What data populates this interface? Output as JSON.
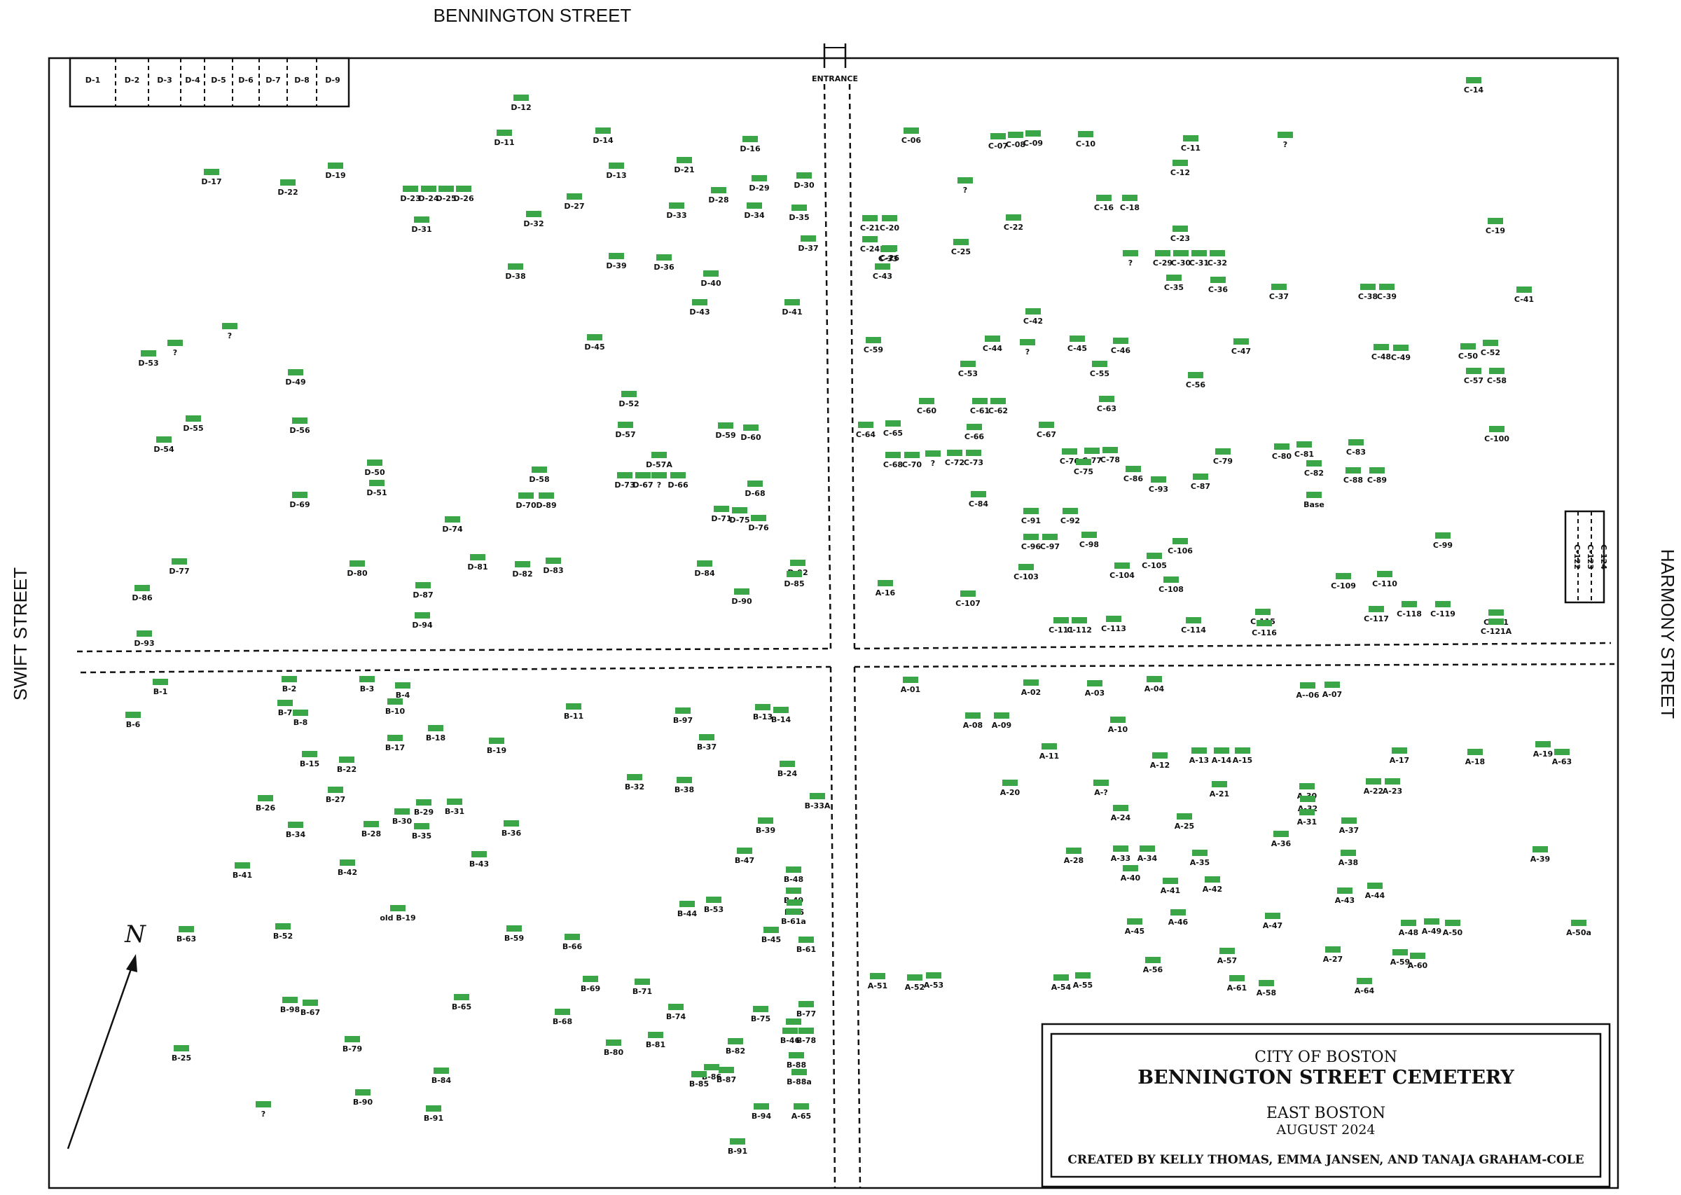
{
  "streets": {
    "north": "BENNINGTON STREET",
    "west": "SWIFT STREET",
    "east": "HARMONY STREET"
  },
  "entrance": "ENTRANCE",
  "compass": "N",
  "title_block": {
    "line1": "CITY OF BOSTON",
    "line2": "BENNINGTON STREET CEMETERY",
    "line3": "EAST BOSTON",
    "line4": "AUGUST 2024",
    "line5": "CREATED BY KELLY THOMAS, EMMA JANSEN, AND TANAJA GRAHAM-COLE"
  },
  "d_row": [
    "D-1",
    "D-2",
    "D-3",
    "D-4",
    "D-5",
    "D-6",
    "D-7",
    "D-8",
    "D-9"
  ],
  "c_box": [
    "C-122",
    "C-123",
    "C-124"
  ],
  "colors": {
    "marker": "#3aa648",
    "ink": "#111111",
    "background": "#ffffff"
  },
  "markers": {
    "D": [
      "D-12",
      "D-11",
      "D-14",
      "D-16",
      "D-21",
      "D-13",
      "D-30",
      "D-29",
      "D-28",
      "D-17",
      "D-22",
      "D-19",
      "D-23",
      "D-24",
      "D-25",
      "D-26",
      "D-27",
      "D-32",
      "D-33",
      "D-34",
      "D-35",
      "D-31",
      "D-37",
      "D-39",
      "D-36",
      "D-38",
      "D-40",
      "D-43",
      "D-41",
      "D-45",
      "?",
      "?",
      "D-53",
      "D-49",
      "D-52",
      "D-55",
      "D-56",
      "D-54",
      "D-57",
      "D-59",
      "D-60",
      "D-57A",
      "D-50",
      "D-58",
      "D-51",
      "D-73",
      "D-67",
      "?",
      "D-66",
      "D-68",
      "D-69",
      "D-70",
      "D-89",
      "D-71",
      "D-75",
      "D-76",
      "D-74",
      "D-92",
      "D-81",
      "D-77",
      "D-80",
      "D-82",
      "D-83",
      "D-84",
      "D-85",
      "D-87",
      "D-86",
      "D-90",
      "D-94",
      "D-93"
    ],
    "C": [
      "C-14",
      "C-06",
      "C-07",
      "C-08",
      "C-09",
      "C-10",
      "C-11",
      "?",
      "C-12",
      "?",
      "C-16",
      "C-18",
      "C-21",
      "C-20",
      "C-22",
      "C-23",
      "C-19",
      "C-24",
      "C-26",
      "C-25",
      "C-33",
      "?",
      "C-29",
      "C-30",
      "C-31",
      "C-32",
      "C-43",
      "C-35",
      "C-36",
      "C-37",
      "C-38",
      "C-39",
      "C-41",
      "C-42",
      "C-59",
      "C-44",
      "?",
      "C-45",
      "C-46",
      "C-47",
      "C-50",
      "C-52",
      "C-48",
      "C-49",
      "C-53",
      "C-55",
      "C-57",
      "C-58",
      "C-56",
      "C-60",
      "C-61",
      "C-62",
      "C-63",
      "C-64",
      "C-65",
      "C-66",
      "C-67",
      "C-77",
      "C-78",
      "C-76",
      "C-100",
      "C-68",
      "C-70",
      "?",
      "C-72",
      "C-73",
      "C-75",
      "C-79",
      "C-80",
      "C-81",
      "C-83",
      "C-86",
      "C-93",
      "C-87",
      "C-82",
      "C-88",
      "C-89",
      "C-84",
      "Base",
      "C-91",
      "C-92",
      "C-96",
      "C-97",
      "C-98",
      "C-99",
      "C-106",
      "C-105",
      "C-103",
      "C-104",
      "C-109",
      "C-110",
      "C-108",
      "C-107",
      "C-115",
      "C-121",
      "C-111",
      "C-112",
      "C-113",
      "C-114",
      "C-116",
      "C-117",
      "C-118",
      "C-119",
      "C-121A"
    ],
    "A": [
      "A-16",
      "A-01",
      "A-02",
      "A-03",
      "A-04",
      "A--06",
      "A-07",
      "A-08",
      "A-09",
      "A-10",
      "A-11",
      "A-12",
      "A-13",
      "A-14",
      "A-15",
      "A-17",
      "A-18",
      "A-19",
      "A-63",
      "A-30",
      "A-20",
      "A-?",
      "A-21",
      "A-22",
      "A-23",
      "A-32",
      "A-24",
      "A-31",
      "A-25",
      "A-37",
      "A-36",
      "A-28",
      "A-33",
      "A-34",
      "A-35",
      "A-38",
      "A-39",
      "A-40",
      "A-41",
      "A-42",
      "A-44",
      "A-43",
      "A-46",
      "A-45",
      "A-47",
      "A-48",
      "A-49",
      "A-50",
      "A-50a",
      "A-57",
      "A-27",
      "A-59",
      "A-60",
      "A-56",
      "A-51",
      "A-52",
      "A-53",
      "A-54",
      "A-55",
      "A-61",
      "A-58",
      "A-64"
    ],
    "B": [
      "B-1",
      "B-2",
      "B-3",
      "B-4",
      "B-6",
      "B-7",
      "B-8",
      "B-10",
      "B-11",
      "B-97",
      "B-13",
      "B-14",
      "B-17",
      "B-18",
      "B-19",
      "B-37",
      "B-15",
      "B-22",
      "B-24",
      "B-32",
      "B-38",
      "B-33A",
      "B-27",
      "B-26",
      "B-29",
      "B-31",
      "B-30",
      "B-28",
      "B-34",
      "B-35",
      "B-36",
      "B-39",
      "B-47",
      "B-43",
      "B-41",
      "B-42",
      "B-48",
      "B-49",
      "old B-19",
      "B-44",
      "B-53",
      "B-55",
      "B-61a",
      "B-52",
      "B-63",
      "B-59",
      "B-66",
      "B-45",
      "B-61",
      "B-69",
      "B-71",
      "B-65",
      "B-98",
      "B-67",
      "B-74",
      "B-68",
      "B-75",
      "B-77",
      "B-76",
      "B-46",
      "B-78",
      "B-79",
      "B-80",
      "B-81",
      "B-82",
      "B-25",
      "B-88",
      "B-86",
      "B-84",
      "B-87",
      "B-85",
      "B-88a",
      "B-90",
      "?",
      "B-91",
      "B-94",
      "A-65",
      "B-91"
    ]
  }
}
